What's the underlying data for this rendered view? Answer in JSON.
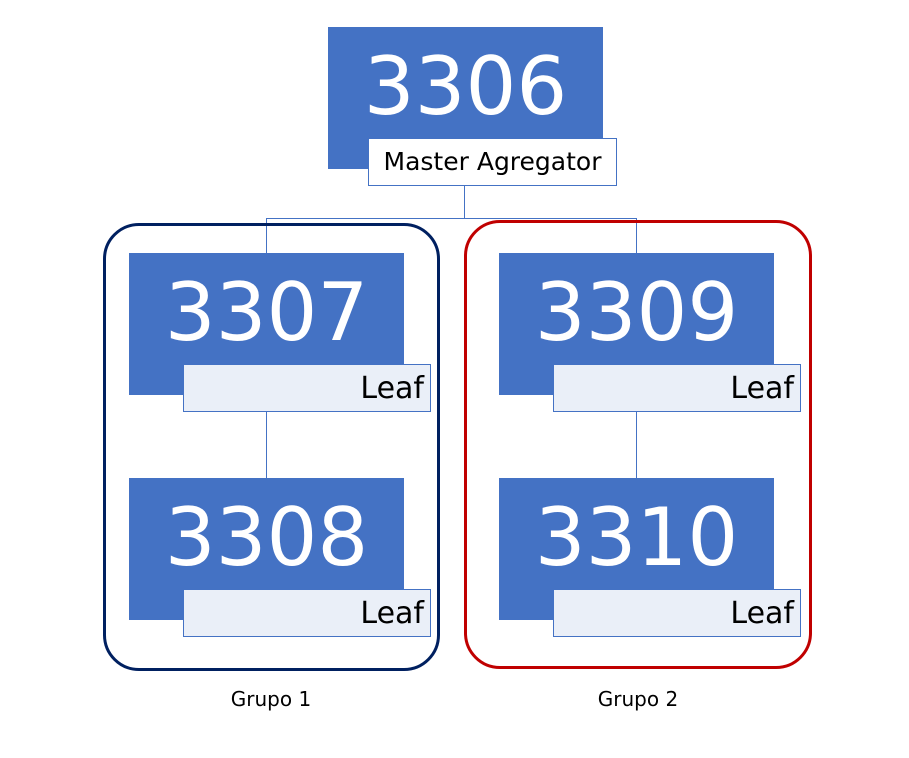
{
  "colors": {
    "node_fill": "#4472c4",
    "label_fill": "#eaeff8",
    "group1_border": "#002060",
    "group2_border": "#c00000",
    "connector": "#4472c4"
  },
  "master": {
    "number": "3306",
    "label": "Master Agregator"
  },
  "groups": [
    {
      "label": "Grupo 1",
      "nodes": [
        {
          "number": "3307",
          "label": "Leaf"
        },
        {
          "number": "3308",
          "label": "Leaf"
        }
      ]
    },
    {
      "label": "Grupo 2",
      "nodes": [
        {
          "number": "3309",
          "label": "Leaf"
        },
        {
          "number": "3310",
          "label": "Leaf"
        }
      ]
    }
  ]
}
